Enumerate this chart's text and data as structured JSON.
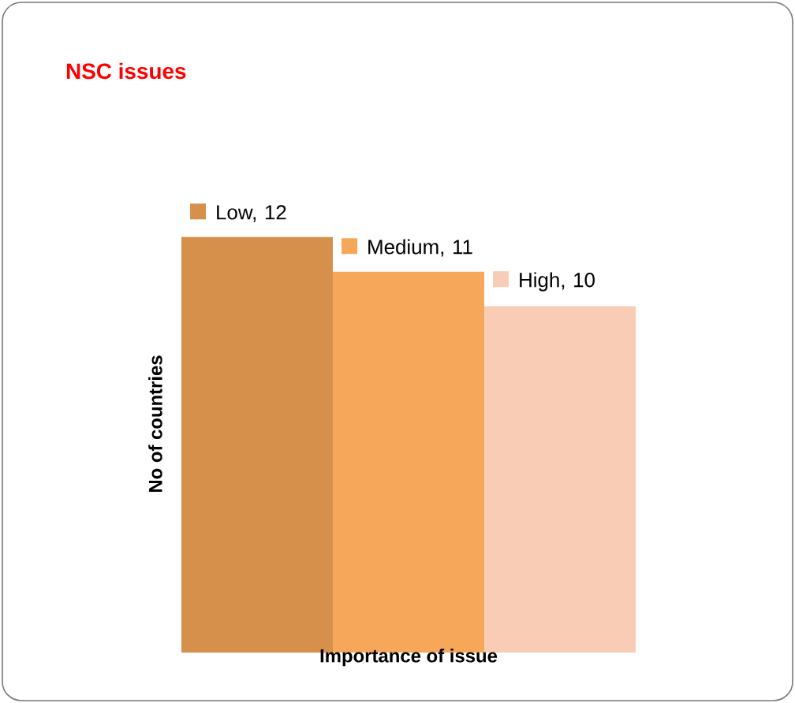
{
  "chart_data": {
    "type": "bar",
    "title": "NSC issues",
    "xlabel": "Importance of issue",
    "ylabel": "No of countries",
    "categories": [
      null,
      null,
      null
    ],
    "values": [
      12,
      11,
      10
    ],
    "value_labels": [
      "Low, 12",
      "Medium, 11",
      "High, 10"
    ],
    "colors": [
      "#d78f4c",
      "#f7a75a",
      "#f9cdb5"
    ]
  }
}
